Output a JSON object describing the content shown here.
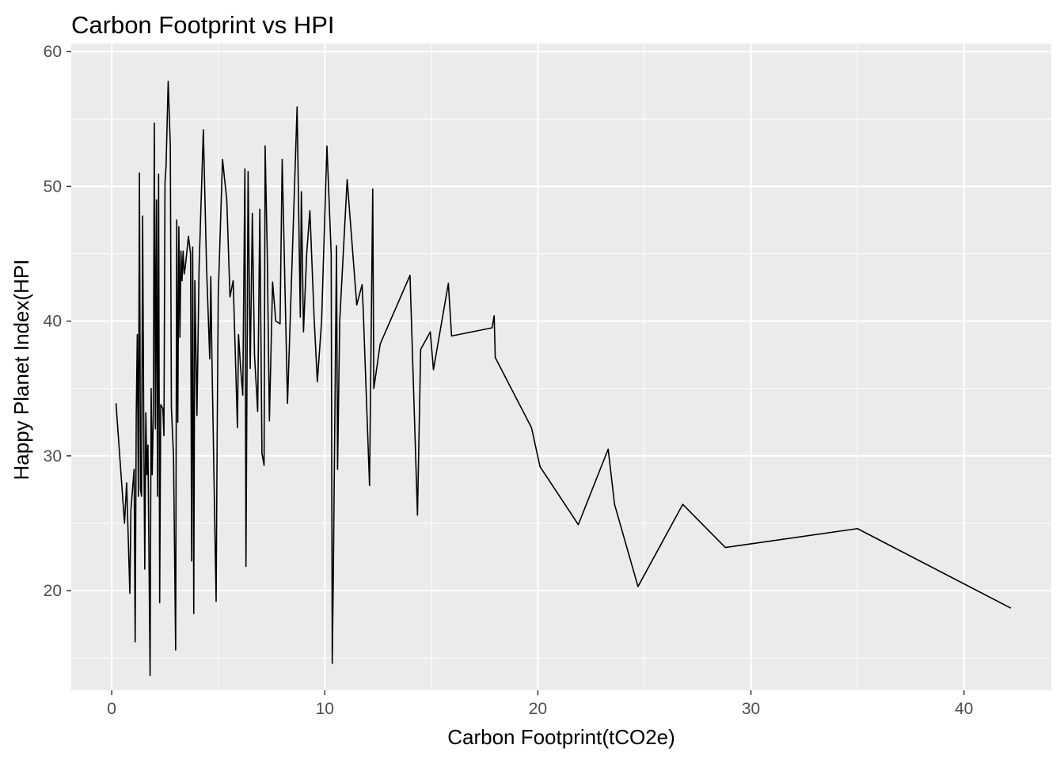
{
  "chart_data": {
    "type": "line",
    "title": "Carbon Footprint vs HPI",
    "xlabel": "Carbon Footprint(tCO2e)",
    "ylabel": "Happy Planet Index(HPI",
    "xlim": [
      -1.9,
      44.1
    ],
    "ylim": [
      12.6,
      60.6
    ],
    "x_ticks": [
      0,
      10,
      20,
      30,
      40
    ],
    "y_ticks": [
      20,
      30,
      40,
      50,
      60
    ],
    "x_tick_labels": [
      "0",
      "10",
      "20",
      "30",
      "40"
    ],
    "y_tick_labels": [
      "20",
      "30",
      "40",
      "50",
      "60"
    ],
    "grid": true,
    "colors": {
      "panel": "#ebebeb",
      "grid": "#ffffff",
      "line": "#000000",
      "tick_text": "#4d4d4d",
      "tick_mark": "#333333"
    },
    "series": [
      {
        "values": [
          [
            0.2,
            33.9
          ],
          [
            0.6,
            25.0
          ],
          [
            0.7,
            28.0
          ],
          [
            0.85,
            19.8
          ],
          [
            0.9,
            26.0
          ],
          [
            1.05,
            29.0
          ],
          [
            1.1,
            16.2
          ],
          [
            1.15,
            33.0
          ],
          [
            1.2,
            39.0
          ],
          [
            1.25,
            27.0
          ],
          [
            1.3,
            51.0
          ],
          [
            1.35,
            27.5
          ],
          [
            1.4,
            27.0
          ],
          [
            1.45,
            47.8
          ],
          [
            1.5,
            33.0
          ],
          [
            1.55,
            21.6
          ],
          [
            1.6,
            33.2
          ],
          [
            1.65,
            28.6
          ],
          [
            1.7,
            30.8
          ],
          [
            1.75,
            22.2
          ],
          [
            1.8,
            13.7
          ],
          [
            1.85,
            35.0
          ],
          [
            1.9,
            28.6
          ],
          [
            1.95,
            33.0
          ],
          [
            2.0,
            54.7
          ],
          [
            2.05,
            32.0
          ],
          [
            2.1,
            49.0
          ],
          [
            2.15,
            27.0
          ],
          [
            2.2,
            50.9
          ],
          [
            2.25,
            19.1
          ],
          [
            2.3,
            33.8
          ],
          [
            2.4,
            33.5
          ],
          [
            2.45,
            31.5
          ],
          [
            2.5,
            50.3
          ],
          [
            2.55,
            51.5
          ],
          [
            2.65,
            57.8
          ],
          [
            2.75,
            53.0
          ],
          [
            2.8,
            33.6
          ],
          [
            2.9,
            30.0
          ],
          [
            3.0,
            15.6
          ],
          [
            3.05,
            47.5
          ],
          [
            3.1,
            32.5
          ],
          [
            3.15,
            47.0
          ],
          [
            3.2,
            38.8
          ],
          [
            3.25,
            45.2
          ],
          [
            3.3,
            43.0
          ],
          [
            3.35,
            45.2
          ],
          [
            3.4,
            43.5
          ],
          [
            3.45,
            44.0
          ],
          [
            3.55,
            45.5
          ],
          [
            3.6,
            46.3
          ],
          [
            3.7,
            45.0
          ],
          [
            3.75,
            22.2
          ],
          [
            3.8,
            45.5
          ],
          [
            3.85,
            18.3
          ],
          [
            3.9,
            43.0
          ],
          [
            4.0,
            33.0
          ],
          [
            4.1,
            44.0
          ],
          [
            4.3,
            54.2
          ],
          [
            4.45,
            44.0
          ],
          [
            4.6,
            37.2
          ],
          [
            4.65,
            43.3
          ],
          [
            4.7,
            37.5
          ],
          [
            4.9,
            19.2
          ],
          [
            4.95,
            31.5
          ],
          [
            5.0,
            42.0
          ],
          [
            5.2,
            52.0
          ],
          [
            5.4,
            49.0
          ],
          [
            5.55,
            41.8
          ],
          [
            5.7,
            43.0
          ],
          [
            5.9,
            32.1
          ],
          [
            5.95,
            39.0
          ],
          [
            6.05,
            36.5
          ],
          [
            6.15,
            34.5
          ],
          [
            6.25,
            51.3
          ],
          [
            6.3,
            21.8
          ],
          [
            6.4,
            51.1
          ],
          [
            6.5,
            36.5
          ],
          [
            6.6,
            48.0
          ],
          [
            6.7,
            37.5
          ],
          [
            6.85,
            33.3
          ],
          [
            6.95,
            48.3
          ],
          [
            7.05,
            30.2
          ],
          [
            7.15,
            29.3
          ],
          [
            7.2,
            53.0
          ],
          [
            7.3,
            45.0
          ],
          [
            7.4,
            32.6
          ],
          [
            7.55,
            42.9
          ],
          [
            7.7,
            40.0
          ],
          [
            7.9,
            39.8
          ],
          [
            8.0,
            52.0
          ],
          [
            8.25,
            33.9
          ],
          [
            8.7,
            55.9
          ],
          [
            8.85,
            40.3
          ],
          [
            8.9,
            49.6
          ],
          [
            9.0,
            39.2
          ],
          [
            9.15,
            45.0
          ],
          [
            9.3,
            48.2
          ],
          [
            9.5,
            40.2
          ],
          [
            9.65,
            35.5
          ],
          [
            9.85,
            40.0
          ],
          [
            10.1,
            53.0
          ],
          [
            10.3,
            45.0
          ],
          [
            10.35,
            14.6
          ],
          [
            10.4,
            21.0
          ],
          [
            10.55,
            45.6
          ],
          [
            10.6,
            29.0
          ],
          [
            10.7,
            40.0
          ],
          [
            11.05,
            50.5
          ],
          [
            11.5,
            41.2
          ],
          [
            11.75,
            42.7
          ],
          [
            11.8,
            41.0
          ],
          [
            12.1,
            27.8
          ],
          [
            12.25,
            49.8
          ],
          [
            12.3,
            35.0
          ],
          [
            12.6,
            38.3
          ],
          [
            14.0,
            43.4
          ],
          [
            14.35,
            25.6
          ],
          [
            14.5,
            37.9
          ],
          [
            14.95,
            39.2
          ],
          [
            15.1,
            36.4
          ],
          [
            15.8,
            42.8
          ],
          [
            15.95,
            38.9
          ],
          [
            17.85,
            39.5
          ],
          [
            17.95,
            40.4
          ],
          [
            18.0,
            37.3
          ],
          [
            19.7,
            32.1
          ],
          [
            20.1,
            29.2
          ],
          [
            21.9,
            24.9
          ],
          [
            23.3,
            30.5
          ],
          [
            23.6,
            26.4
          ],
          [
            24.7,
            20.3
          ],
          [
            26.8,
            26.4
          ],
          [
            28.8,
            23.2
          ],
          [
            35.0,
            24.6
          ],
          [
            42.2,
            18.7
          ]
        ]
      }
    ]
  }
}
